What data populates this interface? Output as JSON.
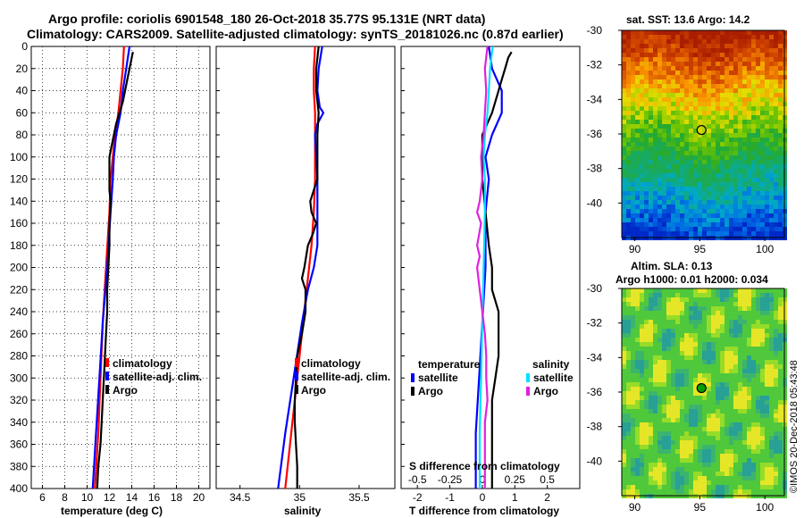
{
  "title_line1": "Argo profile: coriolis 6901548_180 26-Oct-2018 35.77S 95.131E (NRT data)",
  "title_line2": "Climatology: CARS2009. Satellite-adjusted climatology: synTS_20181026.nc (0.87d earlier)",
  "sst_title": "sat. SST: 13.6 Argo: 14.2",
  "sla_title1": "Altim. SLA: 0.13",
  "sla_title2": "Argo h1000: 0.01 h2000: 0.034",
  "stamp": "©IMOS 20-Dec-2018 05:43:48",
  "colors": {
    "climatology": "#ff0000",
    "satellite": "#0000ff",
    "argo": "#000000",
    "sat_salinity": "#00e0ff",
    "argo_salinity": "#e020e0"
  },
  "chart_data": [
    {
      "type": "line",
      "name": "temperature",
      "xlabel": "temperature (deg C)",
      "ylabel": "",
      "xlim": [
        5,
        21
      ],
      "ylim": [
        400,
        0
      ],
      "x_ticks": [
        "6",
        "8",
        "10",
        "12",
        "14",
        "16",
        "18",
        "20"
      ],
      "y_ticks": [
        "0",
        "20",
        "40",
        "60",
        "80",
        "100",
        "120",
        "140",
        "160",
        "180",
        "200",
        "220",
        "240",
        "260",
        "280",
        "300",
        "320",
        "340",
        "360",
        "380",
        "400"
      ],
      "legend": [
        "climatology",
        "satellite-adj. clim.",
        "Argo"
      ],
      "series": [
        {
          "name": "climatology",
          "depth": [
            0,
            20,
            40,
            60,
            80,
            100,
            120,
            150,
            200,
            250,
            300,
            350,
            400
          ],
          "values": [
            13.3,
            13.2,
            13.0,
            12.8,
            12.5,
            12.3,
            12.1,
            12.0,
            11.7,
            11.4,
            11.2,
            11.0,
            10.7
          ]
        },
        {
          "name": "satellite-adj. clim.",
          "depth": [
            0,
            20,
            40,
            60,
            80,
            100,
            120,
            150,
            200,
            250,
            300,
            350,
            400
          ],
          "values": [
            13.8,
            13.5,
            13.2,
            13.0,
            12.6,
            12.4,
            12.3,
            12.1,
            11.8,
            11.4,
            11.1,
            10.8,
            10.5
          ]
        },
        {
          "name": "Argo",
          "depth": [
            5,
            10,
            20,
            30,
            40,
            50,
            60,
            70,
            80,
            90,
            100,
            110,
            120,
            130,
            140,
            160,
            180,
            200,
            220,
            240,
            260,
            280,
            300,
            320,
            340,
            360,
            380,
            400
          ],
          "values": [
            14.1,
            14.0,
            13.8,
            13.6,
            13.4,
            13.2,
            12.9,
            12.6,
            12.4,
            12.2,
            12.0,
            12.0,
            12.0,
            12.0,
            12.1,
            12.0,
            12.0,
            11.9,
            11.8,
            11.8,
            11.7,
            11.6,
            11.5,
            11.4,
            11.3,
            11.2,
            11.0,
            10.9
          ]
        }
      ]
    },
    {
      "type": "line",
      "name": "salinity",
      "xlabel": "salinity",
      "ylabel": "",
      "xlim": [
        34.3,
        35.8
      ],
      "ylim": [
        400,
        0
      ],
      "x_ticks": [
        "34.5",
        "35",
        "35.5"
      ],
      "legend": [
        "climatology",
        "satellite-adj. clim.",
        "Argo"
      ],
      "series": [
        {
          "name": "climatology",
          "depth": [
            0,
            20,
            40,
            60,
            80,
            100,
            120,
            150,
            180,
            200,
            220,
            250,
            300,
            350,
            400
          ],
          "values": [
            35.13,
            35.12,
            35.12,
            35.13,
            35.13,
            35.13,
            35.13,
            35.12,
            35.1,
            35.08,
            35.06,
            35.03,
            34.98,
            34.93,
            34.88
          ]
        },
        {
          "name": "satellite-adj. clim.",
          "depth": [
            0,
            20,
            40,
            55,
            60,
            70,
            80,
            100,
            120,
            150,
            180,
            200,
            220,
            250,
            300,
            350,
            400
          ],
          "values": [
            35.19,
            35.16,
            35.15,
            35.17,
            35.2,
            35.15,
            35.13,
            35.14,
            35.15,
            35.15,
            35.15,
            35.12,
            35.07,
            35.02,
            34.95,
            34.88,
            34.82
          ]
        },
        {
          "name": "Argo",
          "depth": [
            0,
            20,
            40,
            60,
            80,
            100,
            120,
            130,
            140,
            150,
            160,
            170,
            180,
            200,
            210,
            220,
            240,
            260,
            280,
            300,
            320,
            340,
            360,
            380,
            400
          ],
          "values": [
            35.16,
            35.14,
            35.14,
            35.16,
            35.15,
            35.15,
            35.15,
            35.12,
            35.09,
            35.1,
            35.14,
            35.11,
            35.07,
            35.04,
            35.02,
            35.05,
            35.05,
            35.02,
            34.98,
            34.97,
            34.96,
            34.96,
            34.97,
            34.98,
            34.98
          ]
        }
      ]
    },
    {
      "type": "line",
      "name": "difference",
      "xlabel": "T difference from climatology",
      "xlabel_top": "S difference from climatology",
      "xlim": [
        -2.5,
        3.0
      ],
      "ylim": [
        400,
        0
      ],
      "x_ticks": [
        "-2",
        "-1",
        "0",
        "1",
        "2"
      ],
      "x2_ticks": [
        "-0.5",
        "-0.25",
        "0",
        "0.25",
        "0.5"
      ],
      "legend_temperature": {
        "title": "temperature",
        "entries": [
          "satellite",
          "Argo"
        ]
      },
      "legend_salinity": {
        "title": "salinity",
        "entries": [
          "satellite",
          "Argo"
        ]
      },
      "series": [
        {
          "name": "temperature satellite",
          "depth": [
            0,
            20,
            40,
            60,
            80,
            100,
            120,
            150,
            200,
            250,
            300,
            350,
            400
          ],
          "values": [
            0.2,
            0.3,
            0.6,
            0.6,
            0.3,
            0.1,
            0.2,
            0.1,
            0.1,
            0.0,
            -0.1,
            -0.2,
            -0.2
          ]
        },
        {
          "name": "temperature Argo",
          "depth": [
            5,
            10,
            20,
            30,
            40,
            60,
            80,
            100,
            120,
            150,
            180,
            200,
            220,
            240,
            260,
            280,
            300,
            320,
            340,
            360,
            380,
            400
          ],
          "values": [
            0.9,
            0.8,
            0.7,
            0.6,
            0.5,
            0.3,
            0.0,
            0.0,
            0.0,
            0.1,
            0.2,
            0.3,
            0.3,
            0.5,
            0.5,
            0.5,
            0.4,
            0.3,
            0.3,
            0.3,
            0.3,
            0.3
          ]
        },
        {
          "name": "salinity satellite",
          "depth": [
            0,
            20,
            40,
            60,
            80,
            100,
            120,
            150,
            200,
            250,
            300,
            350,
            400
          ],
          "values": [
            0.08,
            0.06,
            0.05,
            0.04,
            0.02,
            0.01,
            0.02,
            0.02,
            0.01,
            0.0,
            -0.01,
            -0.02,
            -0.02
          ]
        },
        {
          "name": "salinity Argo",
          "depth": [
            0,
            20,
            40,
            60,
            80,
            100,
            120,
            140,
            150,
            160,
            180,
            190,
            200,
            220,
            240,
            260,
            280,
            300,
            320,
            340,
            360,
            380,
            400
          ],
          "values": [
            0.04,
            0.02,
            0.03,
            0.02,
            0.01,
            -0.01,
            0.0,
            -0.02,
            -0.04,
            -0.01,
            -0.04,
            -0.02,
            -0.04,
            -0.02,
            0.0,
            0.02,
            0.03,
            0.03,
            0.04,
            0.02,
            0.02,
            0.02,
            0.02
          ]
        }
      ]
    },
    {
      "type": "heatmap",
      "name": "sst_map",
      "xlim": [
        89,
        101.5
      ],
      "ylim": [
        -42,
        -30
      ],
      "x_ticks": [
        "90",
        "95",
        "100"
      ],
      "y_ticks": [
        "-30",
        "-32",
        "-34",
        "-36",
        "-38",
        "-40"
      ],
      "marker": {
        "lon": 95.131,
        "lat": -35.77
      }
    },
    {
      "type": "heatmap",
      "name": "sla_map",
      "xlim": [
        89,
        101.5
      ],
      "ylim": [
        -42,
        -30
      ],
      "x_ticks": [
        "90",
        "95",
        "100"
      ],
      "y_ticks": [
        "-30",
        "-32",
        "-34",
        "-36",
        "-38",
        "-40"
      ],
      "marker": {
        "lon": 95.131,
        "lat": -35.77
      }
    }
  ]
}
